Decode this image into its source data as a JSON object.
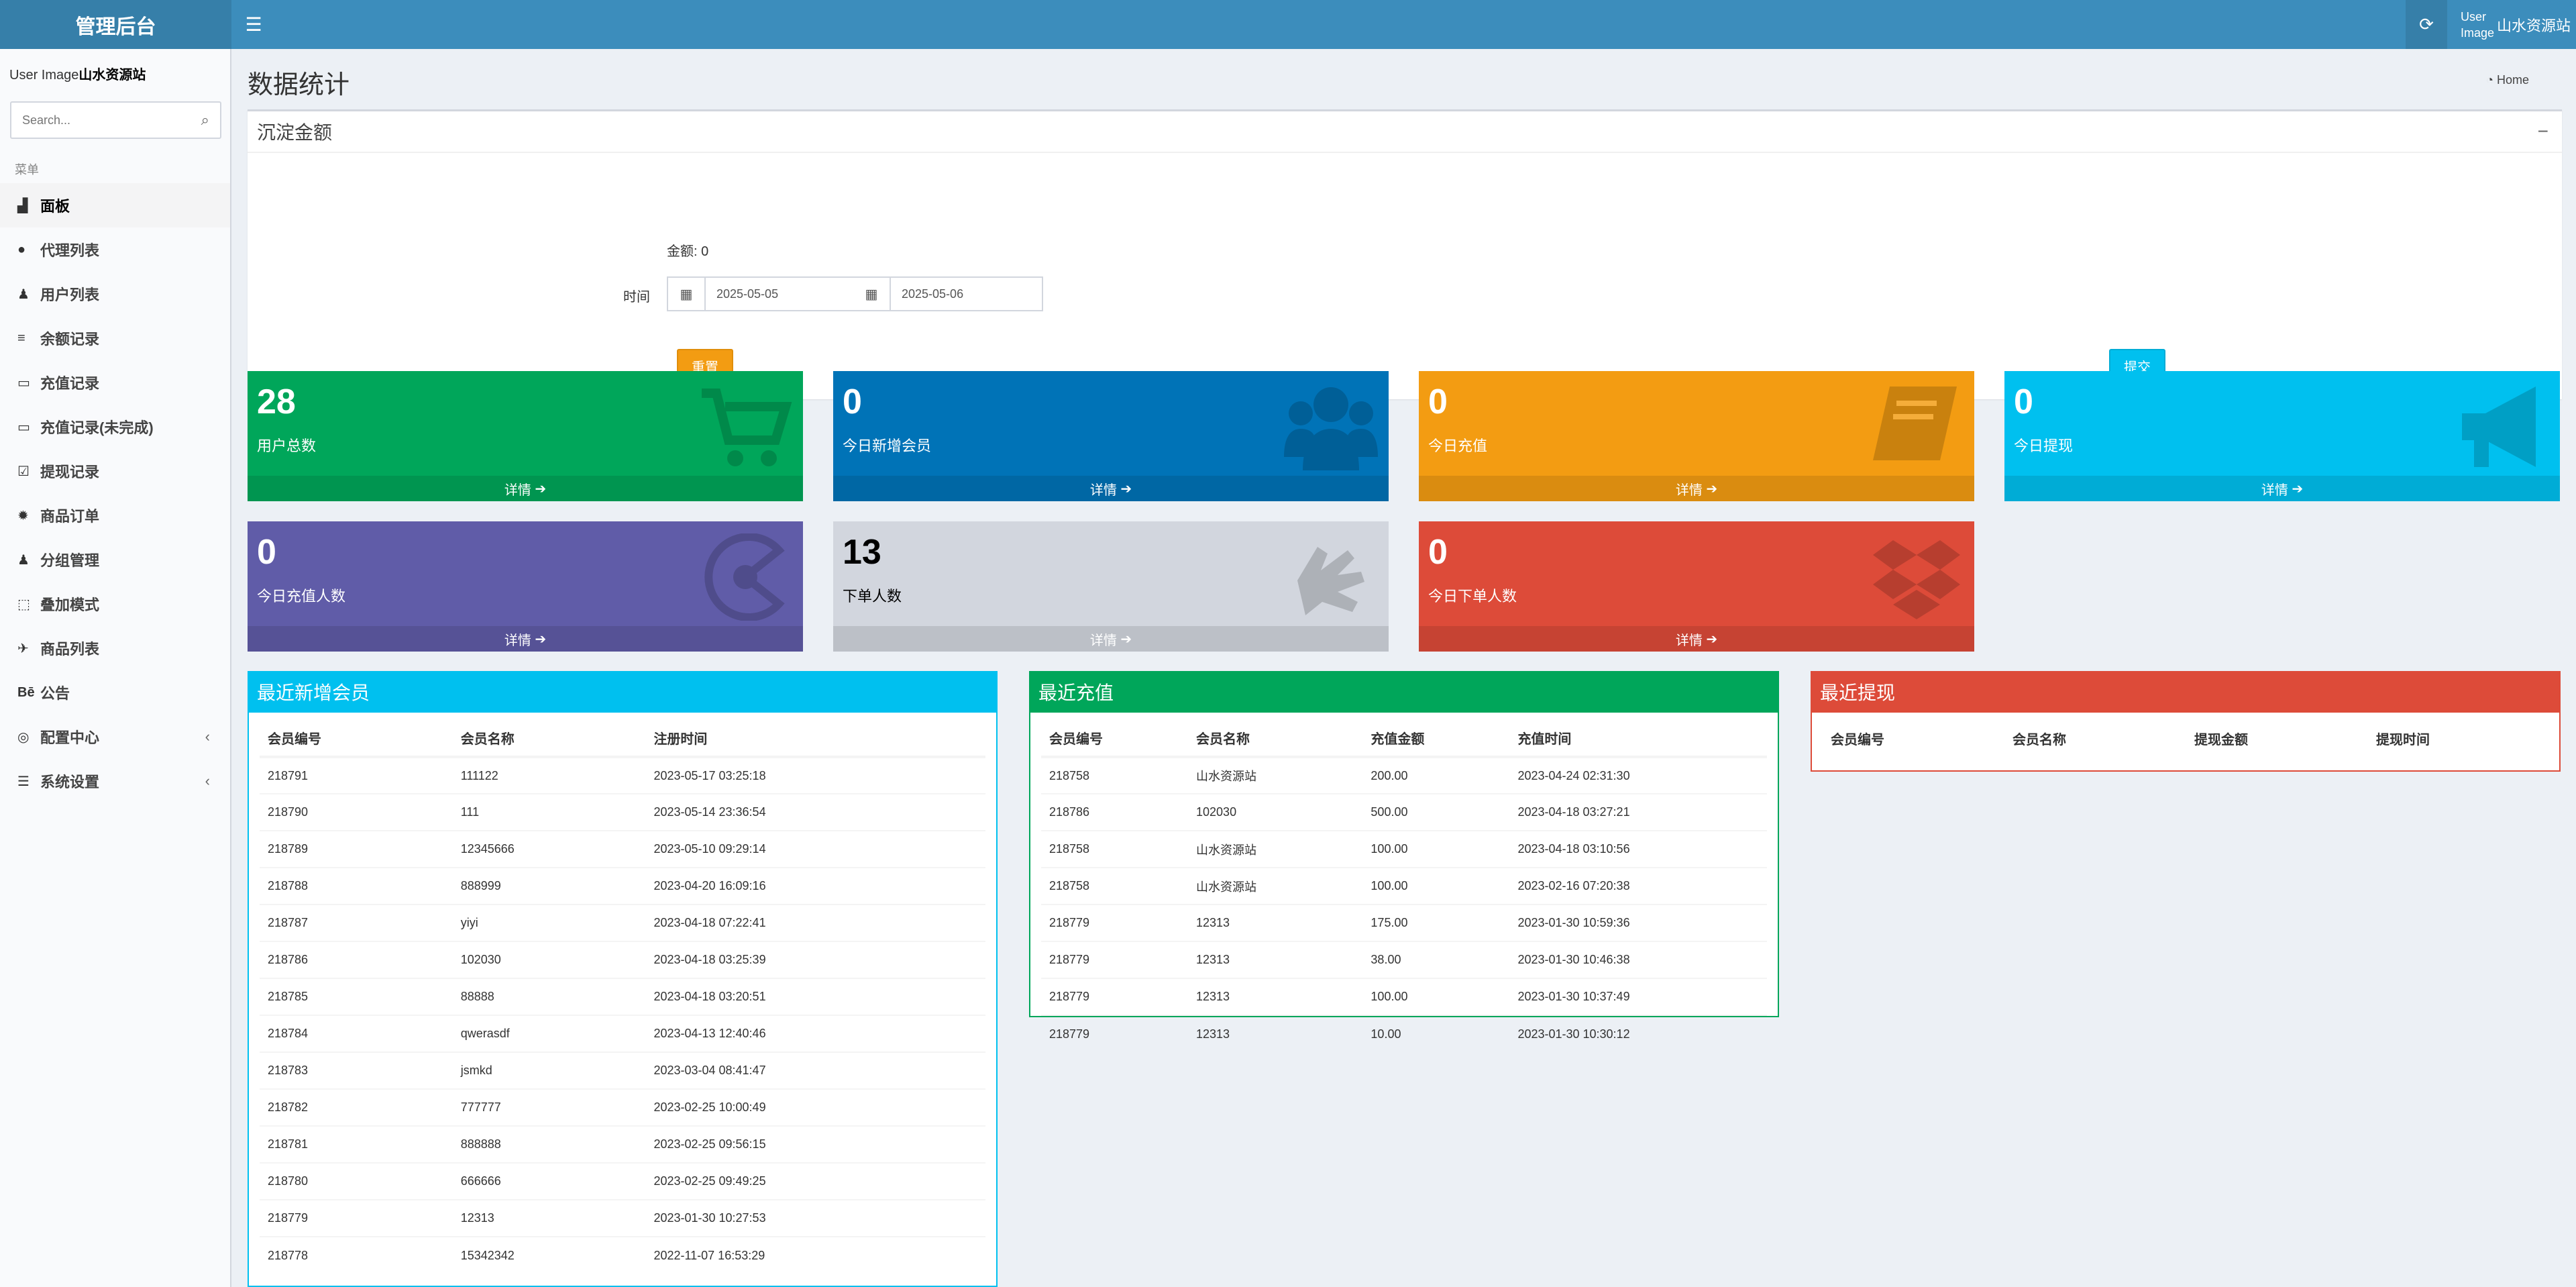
{
  "header": {
    "logo": "管理后台",
    "user_image": "User Image",
    "user_name": "山水资源站"
  },
  "sidebar": {
    "user_image": "User Image",
    "user_name": "山水资源站",
    "search_placeholder": "Search...",
    "menu_header": "菜单",
    "items": [
      {
        "label": "面板",
        "icon": "area-chart-icon",
        "glyph": "▟"
      },
      {
        "label": "代理列表",
        "icon": "circle-icon",
        "glyph": "●"
      },
      {
        "label": "用户列表",
        "icon": "user-icon",
        "glyph": "♟"
      },
      {
        "label": "余额记录",
        "icon": "list-icon",
        "glyph": "≡"
      },
      {
        "label": "充值记录",
        "icon": "battery-full-icon",
        "glyph": "▭"
      },
      {
        "label": "充值记录(未完成)",
        "icon": "battery-empty-icon",
        "glyph": "▭"
      },
      {
        "label": "提现记录",
        "icon": "check-square-icon",
        "glyph": "☑"
      },
      {
        "label": "商品订单",
        "icon": "gear-icon",
        "glyph": "✹"
      },
      {
        "label": "分组管理",
        "icon": "users-icon",
        "glyph": "♟"
      },
      {
        "label": "叠加模式",
        "icon": "object-group-icon",
        "glyph": "⬚"
      },
      {
        "label": "商品列表",
        "icon": "fighter-jet-icon",
        "glyph": "✈"
      },
      {
        "label": "公告",
        "icon": "behance-icon",
        "glyph": "Bē"
      },
      {
        "label": "配置中心",
        "icon": "life-ring-icon",
        "glyph": "◎"
      },
      {
        "label": "系统设置",
        "icon": "server-icon",
        "glyph": "☰"
      }
    ]
  },
  "page": {
    "title": "数据统计",
    "breadcrumb": "Home"
  },
  "filter": {
    "title": "沉淀金额",
    "amount_label": "金额:",
    "amount_value": "0",
    "time_label": "时间",
    "date_start": "2025-05-05",
    "date_end": "2025-05-06",
    "reset_label": "重置",
    "submit_label": "提交"
  },
  "stats": [
    {
      "value": "28",
      "label": "用户总数",
      "link": "详情",
      "color": "#00a65a",
      "icon": "shopping-cart-icon"
    },
    {
      "value": "0",
      "label": "今日新增会员",
      "link": "详情",
      "color": "#0073b7",
      "icon": "users-icon"
    },
    {
      "value": "0",
      "label": "今日充值",
      "link": "详情",
      "color": "#f39c12",
      "icon": "book-icon"
    },
    {
      "value": "0",
      "label": "今日提现",
      "link": "详情",
      "color": "#00c0ef",
      "icon": "bullhorn-icon"
    },
    {
      "value": "0",
      "label": "今日充值人数",
      "link": "详情",
      "color": "#605ca8",
      "icon": "pacman-icon"
    },
    {
      "value": "13",
      "label": "下单人数",
      "link": "详情",
      "color": "#d2d6de",
      "icon": "sign-language-icon"
    },
    {
      "value": "0",
      "label": "今日下单人数",
      "link": "详情",
      "color": "#dd4b39",
      "icon": "dropbox-icon"
    }
  ],
  "members": {
    "title": "最近新增会员",
    "headers": [
      "会员编号",
      "会员名称",
      "注册时间"
    ],
    "rows": [
      [
        "218791",
        "111122",
        "2023-05-17 03:25:18"
      ],
      [
        "218790",
        "111",
        "2023-05-14 23:36:54"
      ],
      [
        "218789",
        "12345666",
        "2023-05-10 09:29:14"
      ],
      [
        "218788",
        "888999",
        "2023-04-20 16:09:16"
      ],
      [
        "218787",
        "yiyi",
        "2023-04-18 07:22:41"
      ],
      [
        "218786",
        "102030",
        "2023-04-18 03:25:39"
      ],
      [
        "218785",
        "88888",
        "2023-04-18 03:20:51"
      ],
      [
        "218784",
        "qwerasdf",
        "2023-04-13 12:40:46"
      ],
      [
        "218783",
        "jsmkd",
        "2023-03-04 08:41:47"
      ],
      [
        "218782",
        "777777",
        "2023-02-25 10:00:49"
      ],
      [
        "218781",
        "888888",
        "2023-02-25 09:56:15"
      ],
      [
        "218780",
        "666666",
        "2023-02-25 09:49:25"
      ],
      [
        "218779",
        "12313",
        "2023-01-30 10:27:53"
      ],
      [
        "218778",
        "15342342",
        "2022-11-07 16:53:29"
      ]
    ]
  },
  "recharge": {
    "title": "最近充值",
    "headers": [
      "会员编号",
      "会员名称",
      "充值金额",
      "充值时间"
    ],
    "rows": [
      [
        "218758",
        "山水资源站",
        "200.00",
        "2023-04-24 02:31:30"
      ],
      [
        "218786",
        "102030",
        "500.00",
        "2023-04-18 03:27:21"
      ],
      [
        "218758",
        "山水资源站",
        "100.00",
        "2023-04-18 03:10:56"
      ],
      [
        "218758",
        "山水资源站",
        "100.00",
        "2023-02-16 07:20:38"
      ],
      [
        "218779",
        "12313",
        "175.00",
        "2023-01-30 10:59:36"
      ],
      [
        "218779",
        "12313",
        "38.00",
        "2023-01-30 10:46:38"
      ],
      [
        "218779",
        "12313",
        "100.00",
        "2023-01-30 10:37:49"
      ],
      [
        "218779",
        "12313",
        "10.00",
        "2023-01-30 10:30:12"
      ]
    ]
  },
  "withdraw": {
    "title": "最近提现",
    "headers": [
      "会员编号",
      "会员名称",
      "提现金额",
      "提现时间"
    ],
    "rows": []
  }
}
